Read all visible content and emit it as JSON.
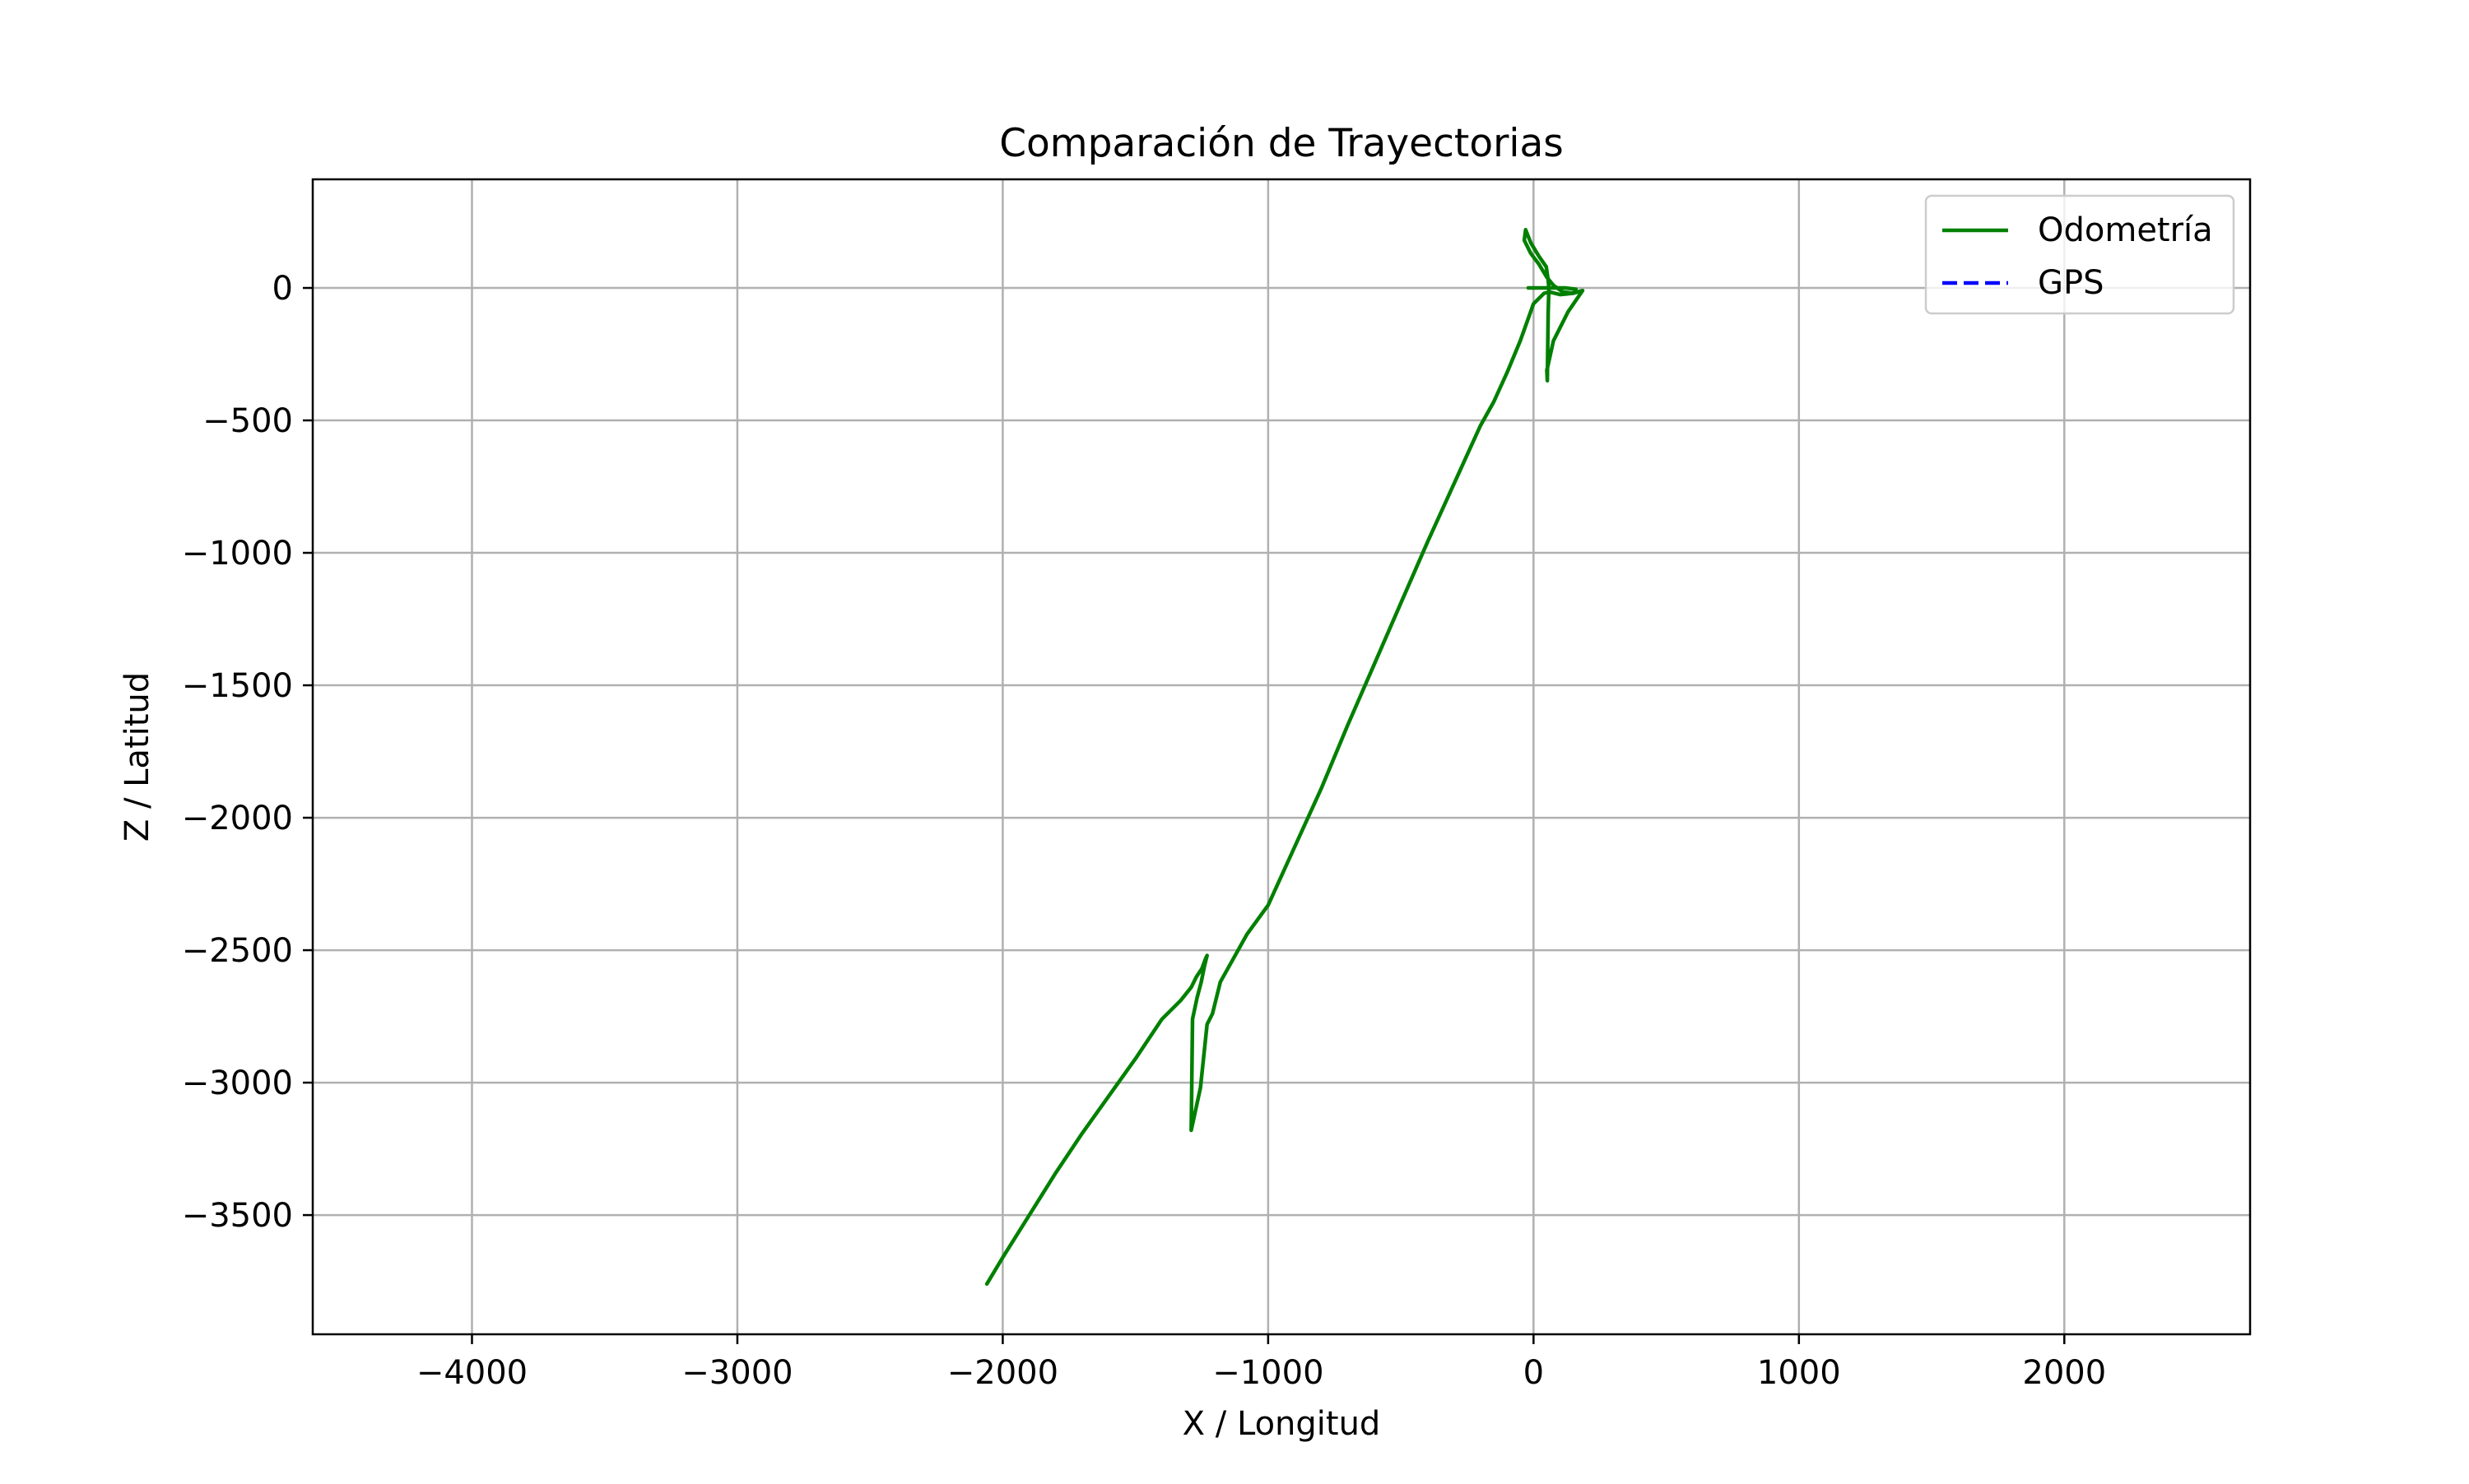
{
  "chart_data": {
    "type": "line",
    "title": "Comparación de Trayectorias",
    "xlabel": "X / Longitud",
    "ylabel": "Z / Latitud",
    "xlim": [
      -4600,
      2700
    ],
    "ylim": [
      -3950,
      410
    ],
    "xticks": [
      -4000,
      -3000,
      -2000,
      -1000,
      0,
      1000,
      2000
    ],
    "xtick_labels": [
      "−4000",
      "−3000",
      "−2000",
      "−1000",
      "0",
      "1000",
      "2000"
    ],
    "yticks": [
      0,
      -500,
      -1000,
      -1500,
      -2000,
      -2500,
      -3000,
      -3500
    ],
    "ytick_labels": [
      "0",
      "−500",
      "−1000",
      "−1500",
      "−2000",
      "−2500",
      "−3000",
      "−3500"
    ],
    "grid": true,
    "legend_position": "top-right",
    "series": [
      {
        "name": "Odometría",
        "color": "#008000",
        "style": "solid",
        "x": [
          -2060,
          -2000,
          -1900,
          -1800,
          -1700,
          -1600,
          -1500,
          -1400,
          -1330,
          -1290,
          -1270,
          -1250,
          -1235,
          -1230,
          -1240,
          -1252,
          -1268,
          -1285,
          -1290,
          -1255,
          -1230,
          -1210,
          -1180,
          -1130,
          -1080,
          -1000,
          -900,
          -800,
          -700,
          -600,
          -500,
          -400,
          -300,
          -200,
          -150,
          -100,
          -50,
          0,
          40,
          60,
          100,
          150,
          185,
          130,
          75,
          55,
          50,
          52,
          55,
          58,
          55,
          48,
          20,
          -10,
          -30,
          -35,
          -10,
          20,
          50,
          75,
          110,
          150,
          160,
          120,
          80,
          40,
          10,
          -20
        ],
        "y": [
          -3760,
          -3660,
          -3500,
          -3340,
          -3190,
          -3050,
          -2910,
          -2760,
          -2690,
          -2640,
          -2600,
          -2570,
          -2530,
          -2520,
          -2560,
          -2620,
          -2680,
          -2760,
          -3180,
          -3020,
          -2780,
          -2740,
          -2620,
          -2530,
          -2440,
          -2330,
          -2110,
          -1890,
          -1650,
          -1420,
          -1190,
          -960,
          -740,
          -520,
          -430,
          -320,
          -200,
          -60,
          -20,
          -15,
          -25,
          -20,
          -10,
          -90,
          -200,
          -290,
          -310,
          -350,
          -100,
          0,
          30,
          80,
          120,
          170,
          220,
          180,
          130,
          90,
          40,
          10,
          -15,
          -20,
          -5,
          0,
          0,
          0,
          0,
          0
        ]
      },
      {
        "name": "GPS",
        "color": "#0000ff",
        "style": "dashed",
        "x": [],
        "y": []
      }
    ]
  }
}
